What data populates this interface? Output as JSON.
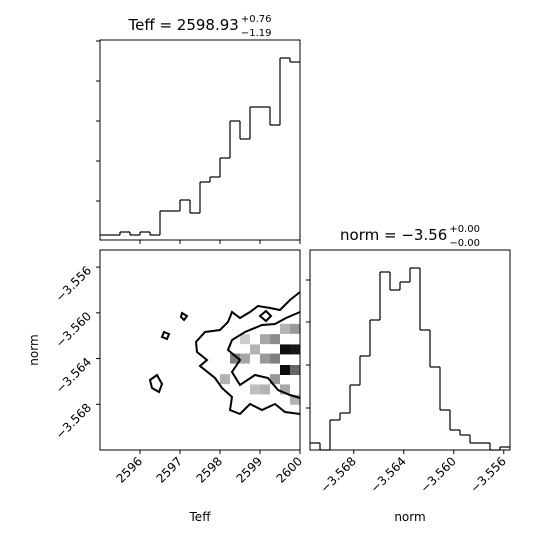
{
  "chart_data": [
    {
      "type": "histogram",
      "title": {
        "main": "Teff = 2598.93",
        "upper": "+0.76",
        "lower": "−1.19"
      },
      "bins": [
        2595,
        2595.25,
        2595.5,
        2595.75,
        2596,
        2596.25,
        2596.5,
        2596.75,
        2597,
        2597.25,
        2597.5,
        2597.75,
        2598,
        2598.25,
        2598.5,
        2598.75,
        2599,
        2599.25,
        2599.5,
        2599.75,
        2600
      ],
      "values": [
        5,
        5,
        8,
        5,
        8,
        5,
        29,
        29,
        40,
        27,
        58,
        63,
        82,
        119,
        101,
        133,
        133,
        115,
        182,
        178
      ],
      "xlim": [
        2595,
        2600
      ],
      "xticks": [
        2596,
        2597,
        2598,
        2599,
        2600
      ],
      "ylim": [
        0,
        200
      ],
      "yticks": [
        39,
        79,
        119,
        159,
        199
      ],
      "color": "#000000"
    },
    {
      "type": "density2d",
      "xlabel": "Teff",
      "ylabel": "norm",
      "xlim": [
        2595,
        2600
      ],
      "xticks": [
        2596,
        2597,
        2598,
        2599,
        2600
      ],
      "ylim": [
        -3.572,
        -3.5545
      ],
      "yticks": [
        {
          "value": -3.556,
          "label": "−3.556"
        },
        {
          "value": -3.56,
          "label": "−3.560"
        },
        {
          "value": -3.564,
          "label": "−3.564"
        },
        {
          "value": -3.568,
          "label": "−3.568"
        }
      ],
      "density": {
        "x": [
          2598.375,
          2598.625,
          2599.125,
          2599.375,
          2599.625,
          2599.875,
          2599.625,
          2599.875,
          2598.875,
          2599.125,
          2599.375,
          2599.375,
          2599.125,
          2598.125,
          2598.875,
          2599.625,
          2599.875,
          2599.625,
          2598.625,
          2599.875
        ],
        "y": [
          -3.564,
          -3.564,
          -3.564,
          -3.564,
          -3.5632,
          -3.5632,
          -3.565,
          -3.565,
          -3.5632,
          -3.5623,
          -3.5623,
          -3.5658,
          -3.5667,
          -3.5658,
          -3.5667,
          -3.5667,
          -3.5614,
          -3.5614,
          -3.5623,
          -3.5676
        ],
        "values": [
          0.5,
          0.35,
          0.4,
          0.5,
          0.95,
          0.9,
          0.95,
          0.6,
          0.3,
          0.35,
          0.45,
          0.4,
          0.3,
          0.3,
          0.25,
          0.35,
          0.4,
          0.3,
          0.2,
          0.3
        ]
      }
    },
    {
      "type": "histogram",
      "title": {
        "main": "norm = −3.56",
        "upper": "+0.00",
        "lower": "−0.00"
      },
      "xlabel": "norm",
      "bins": [
        -3.5715,
        -3.5707,
        -3.5699,
        -3.5691,
        -3.5683,
        -3.5675,
        -3.5667,
        -3.5659,
        -3.5651,
        -3.5643,
        -3.5635,
        -3.5627,
        -3.5619,
        -3.5611,
        -3.5603,
        -3.5595,
        -3.5587,
        -3.5579,
        -3.5571,
        -3.5563,
        -3.5555
      ],
      "values": [
        7,
        0,
        30,
        37,
        65,
        94,
        130,
        178,
        160,
        168,
        182,
        120,
        83,
        40,
        20,
        15,
        7,
        7,
        0,
        3
      ],
      "xlim": [
        -3.5715,
        -3.5555
      ],
      "xticks": [
        {
          "value": -3.568,
          "label": "−3.568"
        },
        {
          "value": -3.564,
          "label": "−3.564"
        },
        {
          "value": -3.56,
          "label": "−3.560"
        },
        {
          "value": -3.556,
          "label": "−3.556"
        }
      ],
      "ylim": [
        0,
        200
      ],
      "yticks": [
        42,
        85,
        128,
        170
      ],
      "color": "#000000"
    }
  ]
}
